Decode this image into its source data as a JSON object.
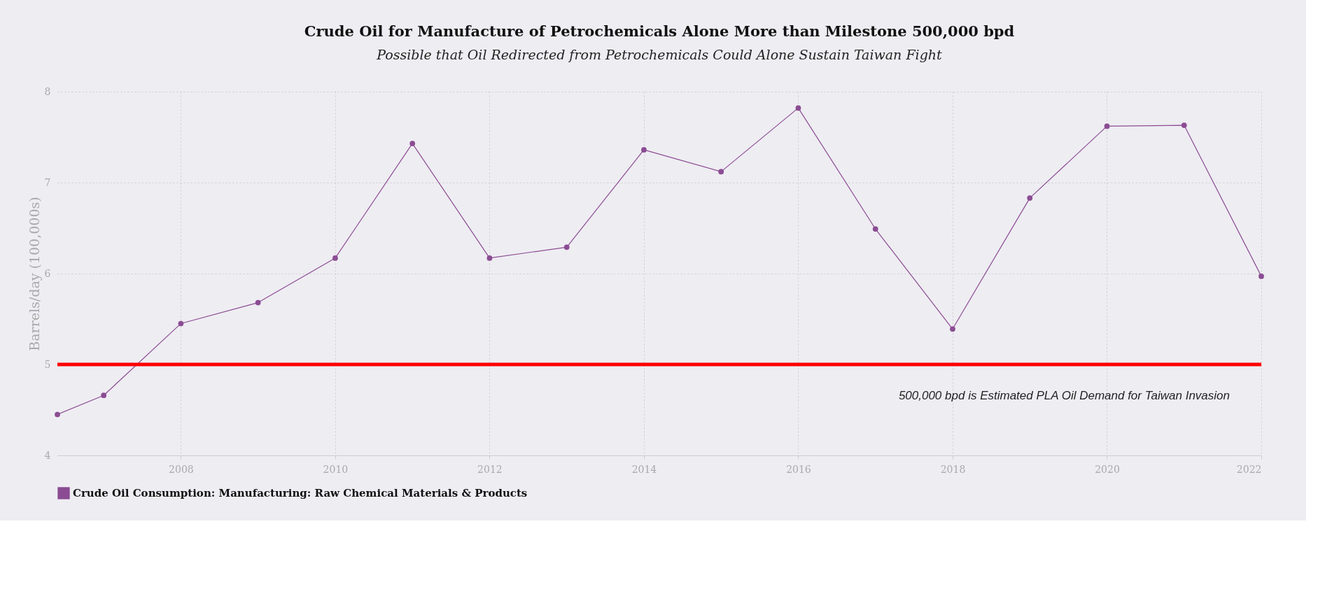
{
  "chart_data": {
    "type": "line",
    "title": "Crude Oil for Manufacture of Petrochemicals Alone More than Milestone 500,000 bpd",
    "subtitle": "Possible that Oil Redirected from Petrochemicals Could Alone Sustain Taiwan Fight",
    "ylabel": "Barrels/day (100,000s)",
    "series": [
      {
        "name": "Crude Oil Consumption: Manufacturing: Raw Chemical Materials & Products",
        "color": "#8b4c93",
        "x": [
          2006.4,
          2007,
          2008,
          2009,
          2010,
          2011,
          2012,
          2013,
          2014,
          2015,
          2016,
          2017,
          2018,
          2019,
          2020,
          2021,
          2022
        ],
        "values": [
          4.45,
          4.66,
          5.45,
          5.68,
          6.17,
          7.43,
          6.17,
          6.29,
          7.36,
          7.12,
          7.82,
          6.49,
          5.39,
          6.83,
          7.62,
          7.63,
          5.97
        ]
      }
    ],
    "xlim": [
      2006.4,
      2022
    ],
    "xticks": [
      2008,
      2010,
      2012,
      2014,
      2016,
      2018,
      2020,
      2022
    ],
    "ylim": [
      4,
      8
    ],
    "yticks": [
      4,
      5,
      6,
      7,
      8
    ],
    "ref_lines": [
      {
        "axis": "y",
        "value": 5,
        "label": "500,000 bpd is Estimated PLA Oil Demand for Taiwan Invasion",
        "color": "#ff0000"
      }
    ],
    "grid": true,
    "legend": "bottom",
    "marker": "circle",
    "line_style": "solid"
  }
}
